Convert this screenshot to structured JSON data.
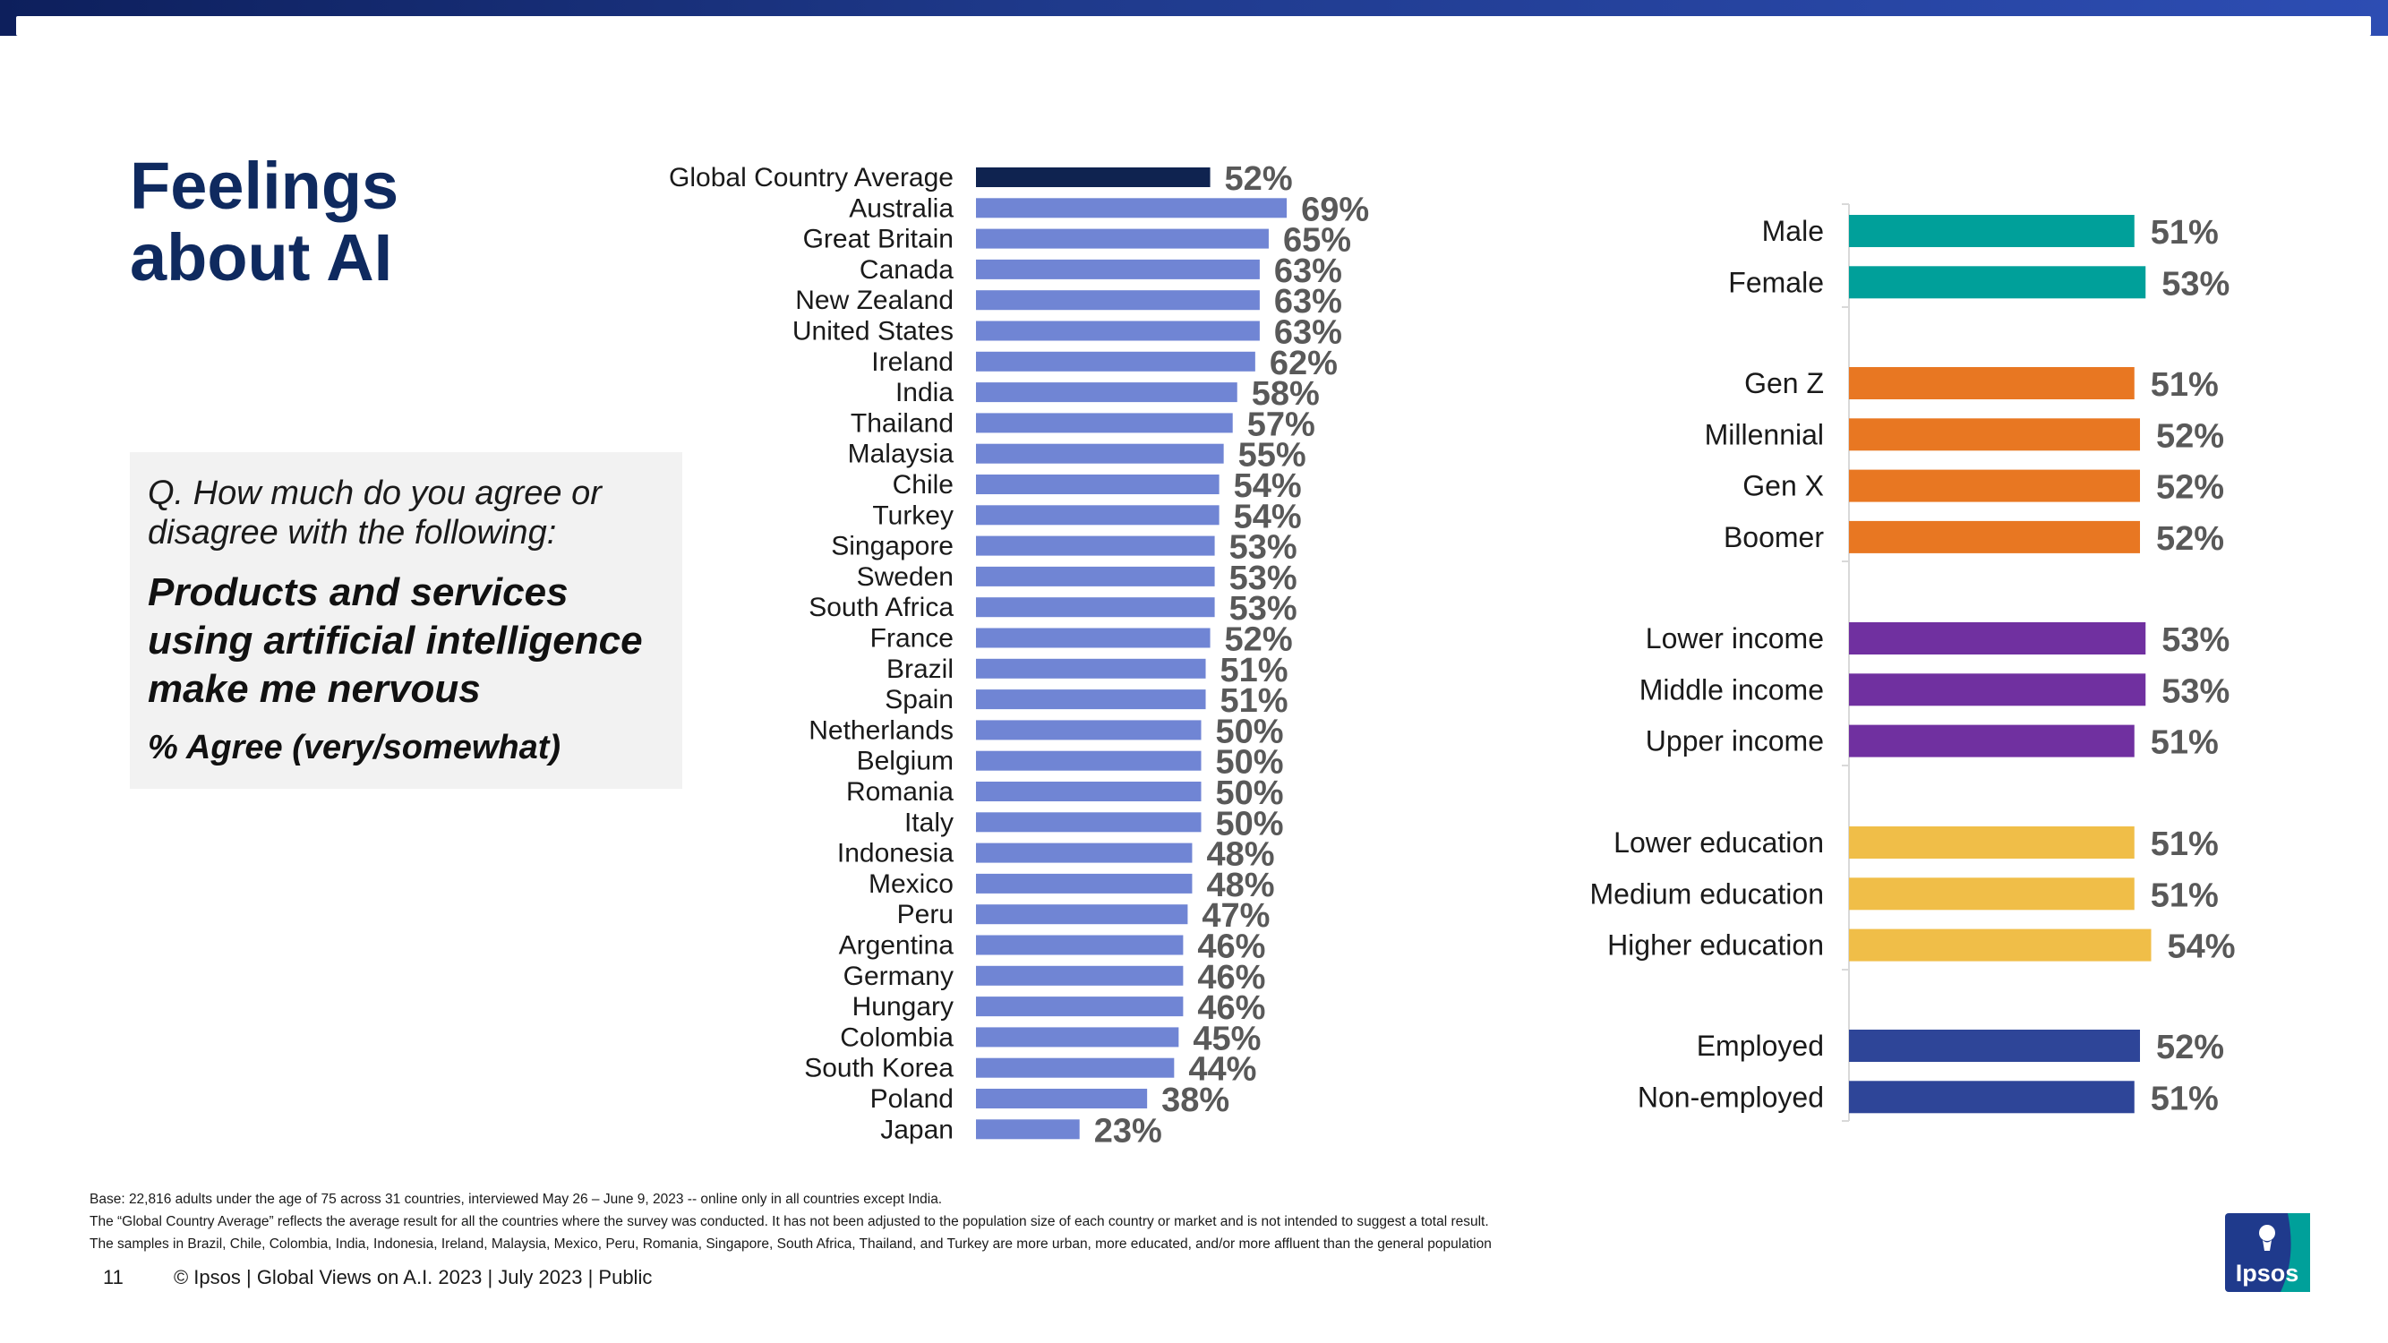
{
  "title": {
    "line1": "Feelings",
    "line2": "about AI"
  },
  "question": {
    "prompt": "Q. How much do you agree or disagree with the following:",
    "statement": "Products and services using artificial intelligence make me nervous",
    "metric": "% Agree (very/somewhat)"
  },
  "colors": {
    "average": "#0f2350",
    "country": "#7085d4",
    "gender": "#00a09a",
    "generation": "#e87722",
    "income": "#7030a0",
    "education": "#f0be48",
    "employment": "#2e4598",
    "value_label": "#595959"
  },
  "chart_data": [
    {
      "type": "bar",
      "orientation": "horizontal",
      "title": "",
      "categories": [
        "Global Country Average",
        "Australia",
        "Great Britain",
        "Canada",
        "New Zealand",
        "United States",
        "Ireland",
        "India",
        "Thailand",
        "Malaysia",
        "Chile",
        "Turkey",
        "Singapore",
        "Sweden",
        "South Africa",
        "France",
        "Brazil",
        "Spain",
        "Netherlands",
        "Belgium",
        "Romania",
        "Italy",
        "Indonesia",
        "Mexico",
        "Peru",
        "Argentina",
        "Germany",
        "Hungary",
        "Colombia",
        "South Korea",
        "Poland",
        "Japan"
      ],
      "values": [
        52,
        69,
        65,
        63,
        63,
        63,
        62,
        58,
        57,
        55,
        54,
        54,
        53,
        53,
        53,
        52,
        51,
        51,
        50,
        50,
        50,
        50,
        48,
        48,
        47,
        46,
        46,
        46,
        45,
        44,
        38,
        23
      ],
      "labels": [
        "52%",
        "69%",
        "65%",
        "63%",
        "63%",
        "63%",
        "62%",
        "58%",
        "57%",
        "55%",
        "54%",
        "54%",
        "53%",
        "53%",
        "53%",
        "52%",
        "51%",
        "51%",
        "50%",
        "50%",
        "50%",
        "50%",
        "48%",
        "48%",
        "47%",
        "46%",
        "46%",
        "46%",
        "45%",
        "44%",
        "38%",
        "23%"
      ],
      "xlim": [
        0,
        100
      ],
      "grid": false,
      "legend": "none"
    },
    {
      "type": "bar",
      "orientation": "horizontal",
      "title": "",
      "groups": [
        {
          "name": "gender",
          "categories": [
            "Male",
            "Female"
          ],
          "values": [
            51,
            53
          ],
          "labels": [
            "51%",
            "53%"
          ]
        },
        {
          "name": "generation",
          "categories": [
            "Gen Z",
            "Millennial",
            "Gen X",
            "Boomer"
          ],
          "values": [
            51,
            52,
            52,
            52
          ],
          "labels": [
            "51%",
            "52%",
            "52%",
            "52%"
          ]
        },
        {
          "name": "income",
          "categories": [
            "Lower income",
            "Middle income",
            "Upper income"
          ],
          "values": [
            53,
            53,
            51
          ],
          "labels": [
            "53%",
            "53%",
            "51%"
          ]
        },
        {
          "name": "education",
          "categories": [
            "Lower education",
            "Medium education",
            "Higher education"
          ],
          "values": [
            51,
            51,
            54
          ],
          "labels": [
            "51%",
            "51%",
            "54%"
          ]
        },
        {
          "name": "employment",
          "categories": [
            "Employed",
            "Non-employed"
          ],
          "values": [
            52,
            51
          ],
          "labels": [
            "52%",
            "51%"
          ]
        }
      ],
      "xlim": [
        0,
        100
      ],
      "grid": false,
      "legend": "none"
    }
  ],
  "footnotes": [
    "Base: 22,816 adults under the age of 75 across 31 countries, interviewed May 26 – June 9, 2023 -- online only in all countries except India.",
    "The “Global Country Average” reflects the average result for all the countries where the survey was conducted. It has not been adjusted to the population size of each country or market and is not intended to suggest a total result.",
    "The samples in Brazil, Chile, Colombia, India, Indonesia, Ireland, Malaysia, Mexico, Peru, Romania, Singapore, South Africa, Thailand, and Turkey are more urban, more educated, and/or more affluent than the general population"
  ],
  "footer": {
    "page_number": "11",
    "text": "© Ipsos | Global Views on A.I. 2023 | July 2023 | Public"
  },
  "logo": {
    "text": "Ipsos"
  }
}
